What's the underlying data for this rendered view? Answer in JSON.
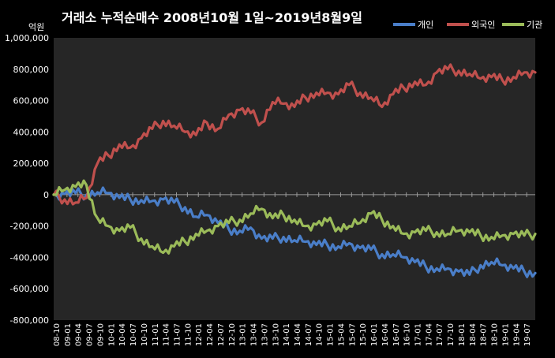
{
  "chart_data": {
    "type": "line",
    "title": "거래소  누적순매수  2008년10월 1일~2019년8월9일",
    "unit_label": "억원",
    "ylim": [
      -800000,
      1000000
    ],
    "yticks": [
      1000000,
      800000,
      600000,
      400000,
      200000,
      0,
      -200000,
      -400000,
      -600000,
      -800000
    ],
    "ytick_labels": [
      "1,000,000",
      "800,000",
      "600,000",
      "400,000",
      "200,000",
      "0",
      "-200,000",
      "-400,000",
      "-600,000",
      "-800,000"
    ],
    "grid": false,
    "legend_position": "top-right",
    "xtick_labels": [
      "08-10",
      "09-01",
      "09-04",
      "09-07",
      "09-10",
      "10-01",
      "10-04",
      "10-07",
      "10-10",
      "11-01",
      "11-04",
      "11-07",
      "11-10",
      "12-01",
      "12-04",
      "12-07",
      "12-10",
      "13-01",
      "13-04",
      "13-07",
      "13-10",
      "14-01",
      "14-04",
      "14-07",
      "14-10",
      "15-01",
      "15-04",
      "15-07",
      "15-10",
      "16-01",
      "16-04",
      "16-07",
      "16-10",
      "17-01",
      "17-04",
      "17-07",
      "17-10",
      "18-01",
      "18-04",
      "18-07",
      "18-10",
      "19-01",
      "19-04",
      "19-07"
    ],
    "x": [
      "2008-10",
      "2009-01",
      "2009-04",
      "2009-07",
      "2009-10",
      "2010-01",
      "2010-04",
      "2010-07",
      "2010-10",
      "2011-01",
      "2011-04",
      "2011-07",
      "2011-10",
      "2012-01",
      "2012-04",
      "2012-07",
      "2012-10",
      "2013-01",
      "2013-04",
      "2013-07",
      "2013-10",
      "2014-01",
      "2014-04",
      "2014-07",
      "2014-10",
      "2015-01",
      "2015-04",
      "2015-07",
      "2015-10",
      "2016-01",
      "2016-04",
      "2016-07",
      "2016-10",
      "2017-01",
      "2017-04",
      "2017-07",
      "2017-10",
      "2018-01",
      "2018-04",
      "2018-07",
      "2018-10",
      "2019-01",
      "2019-04",
      "2019-07",
      "2019-08"
    ],
    "series": [
      {
        "name": "개인",
        "color": "#4a7ec8",
        "values": [
          0,
          5000,
          10000,
          0,
          15000,
          10000,
          -20000,
          -30000,
          -35000,
          -40000,
          -30000,
          -50000,
          -80000,
          -140000,
          -130000,
          -180000,
          -220000,
          -230000,
          -210000,
          -280000,
          -280000,
          -270000,
          -290000,
          -300000,
          -320000,
          -320000,
          -330000,
          -310000,
          -340000,
          -350000,
          -380000,
          -380000,
          -400000,
          -430000,
          -460000,
          -470000,
          -470000,
          -490000,
          -510000,
          -450000,
          -430000,
          -450000,
          -470000,
          -490000,
          -500000
        ]
      },
      {
        "name": "외국인",
        "color": "#c0504d",
        "values": [
          0,
          -30000,
          -50000,
          -20000,
          200000,
          250000,
          320000,
          300000,
          360000,
          420000,
          470000,
          440000,
          400000,
          380000,
          460000,
          420000,
          510000,
          540000,
          520000,
          460000,
          590000,
          580000,
          560000,
          620000,
          650000,
          650000,
          640000,
          700000,
          650000,
          620000,
          560000,
          640000,
          680000,
          720000,
          700000,
          780000,
          800000,
          790000,
          770000,
          740000,
          750000,
          730000,
          750000,
          780000,
          780000
        ]
      },
      {
        "name": "기관",
        "color": "#9bbb59",
        "values": [
          0,
          30000,
          50000,
          60000,
          -150000,
          -200000,
          -230000,
          -210000,
          -280000,
          -330000,
          -370000,
          -330000,
          -300000,
          -250000,
          -230000,
          -200000,
          -180000,
          -160000,
          -120000,
          -90000,
          -150000,
          -130000,
          -160000,
          -200000,
          -190000,
          -170000,
          -210000,
          -200000,
          -180000,
          -120000,
          -160000,
          -200000,
          -250000,
          -240000,
          -230000,
          -240000,
          -250000,
          -230000,
          -240000,
          -260000,
          -270000,
          -260000,
          -250000,
          -260000,
          -250000
        ]
      }
    ]
  }
}
